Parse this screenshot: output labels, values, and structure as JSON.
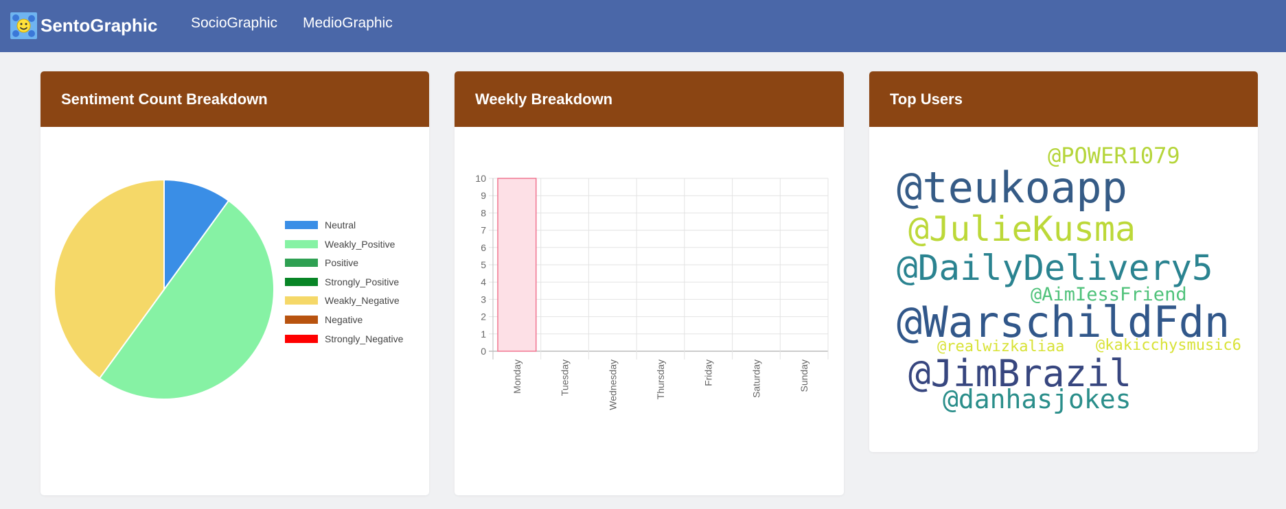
{
  "navbar": {
    "brand": "SentoGraphic",
    "links": [
      "SocioGraphic",
      "MedioGraphic"
    ],
    "bg_color": "#4a67a8"
  },
  "cards": {
    "sentiment": {
      "title": "Sentiment Count Breakdown"
    },
    "weekly": {
      "title": "Weekly Breakdown"
    },
    "users": {
      "title": "Top Users"
    },
    "header_color": "#8b4513"
  },
  "chart_data": [
    {
      "type": "pie",
      "labels": [
        "Neutral",
        "Weakly_Positive",
        "Positive",
        "Strongly_Positive",
        "Weakly_Negative",
        "Negative",
        "Strongly_Negative"
      ],
      "values": [
        1,
        5,
        0,
        0,
        4,
        0,
        0
      ],
      "colors": [
        "#3a8ee6",
        "#86f2a4",
        "#2ea052",
        "#088526",
        "#f5d868",
        "#b8530f",
        "#ff0000"
      ],
      "legend": "right"
    },
    {
      "type": "bar",
      "categories": [
        "Monday",
        "Tuesday",
        "Wednesday",
        "Thursday",
        "Friday",
        "Saturday",
        "Sunday"
      ],
      "values": [
        10,
        0,
        0,
        0,
        0,
        0,
        0
      ],
      "ylim": [
        0,
        10
      ],
      "yticks": [
        0,
        1,
        2,
        3,
        4,
        5,
        6,
        7,
        8,
        9,
        10
      ],
      "bar_fill": "#fde0e6",
      "bar_stroke": "#f07590",
      "grid": true
    }
  ],
  "wordcloud": {
    "words": [
      {
        "text": "@POWER1079",
        "color": "#b5d53a"
      },
      {
        "text": "@teukoapp",
        "color": "#355b86"
      },
      {
        "text": "@JulieKusma",
        "color": "#bcd838"
      },
      {
        "text": "@DailyDelivery5",
        "color": "#2a8390"
      },
      {
        "text": "@AimIessFriend",
        "color": "#4fc27a"
      },
      {
        "text": "@WarschildFdn",
        "color": "#31578a"
      },
      {
        "text": "@realwizkaliaa",
        "color": "#d8e236"
      },
      {
        "text": "@kakicchysmusic6",
        "color": "#d8e236"
      },
      {
        "text": "@JimBrazil",
        "color": "#37467f"
      },
      {
        "text": "@danhasjokes",
        "color": "#2a8e8a"
      }
    ]
  }
}
